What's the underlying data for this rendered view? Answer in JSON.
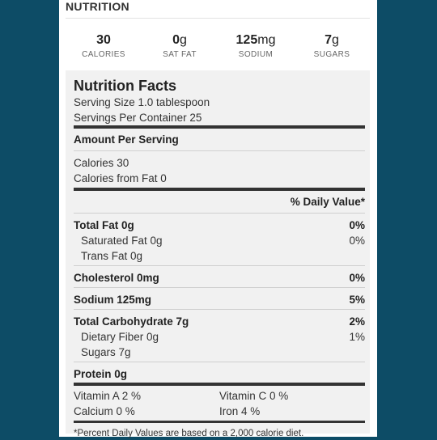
{
  "header": {
    "title": "NUTRITION"
  },
  "summary": [
    {
      "value": "30",
      "unit": "",
      "label": "CALORIES"
    },
    {
      "value": "0",
      "unit": "g",
      "label": "SAT FAT"
    },
    {
      "value": "125",
      "unit": "mg",
      "label": "SODIUM"
    },
    {
      "value": "7",
      "unit": "g",
      "label": "SUGARS"
    }
  ],
  "facts": {
    "title": "Nutrition Facts",
    "serving_size": "Serving Size  1.0 tablespoon",
    "servings_per_container": "Servings Per Container  25",
    "amount_per_serving": "Amount Per Serving",
    "calories": "Calories  30",
    "calories_from_fat": "Calories from Fat  0",
    "dv_header": "% Daily Value*",
    "total_fat": {
      "label": "Total Fat  0g",
      "dv": "0%"
    },
    "saturated_fat": {
      "label": "Saturated Fat  0g",
      "dv": "0%"
    },
    "trans_fat": {
      "label": "Trans Fat  0g"
    },
    "cholesterol": {
      "label": "Cholesterol  0mg",
      "dv": "0%"
    },
    "sodium": {
      "label": "Sodium  125mg",
      "dv": "5%"
    },
    "total_carb": {
      "label": "Total Carbohydrate  7g",
      "dv": "2%"
    },
    "fiber": {
      "label": "Dietary Fiber  0g",
      "dv": "1%"
    },
    "sugars": {
      "label": "Sugars  7g"
    },
    "protein": {
      "label": "Protein  0g"
    },
    "vitamin_a": "Vitamin A  2 %",
    "vitamin_c": "Vitamin C  0 %",
    "calcium": "Calcium  0 %",
    "iron": "Iron  4 %",
    "footnote": "*Percent Daily Values are based on a 2,000 calorie diet."
  },
  "colors": {
    "page_bg": "#0d4c66",
    "panel_bg": "#f1f1f1"
  }
}
